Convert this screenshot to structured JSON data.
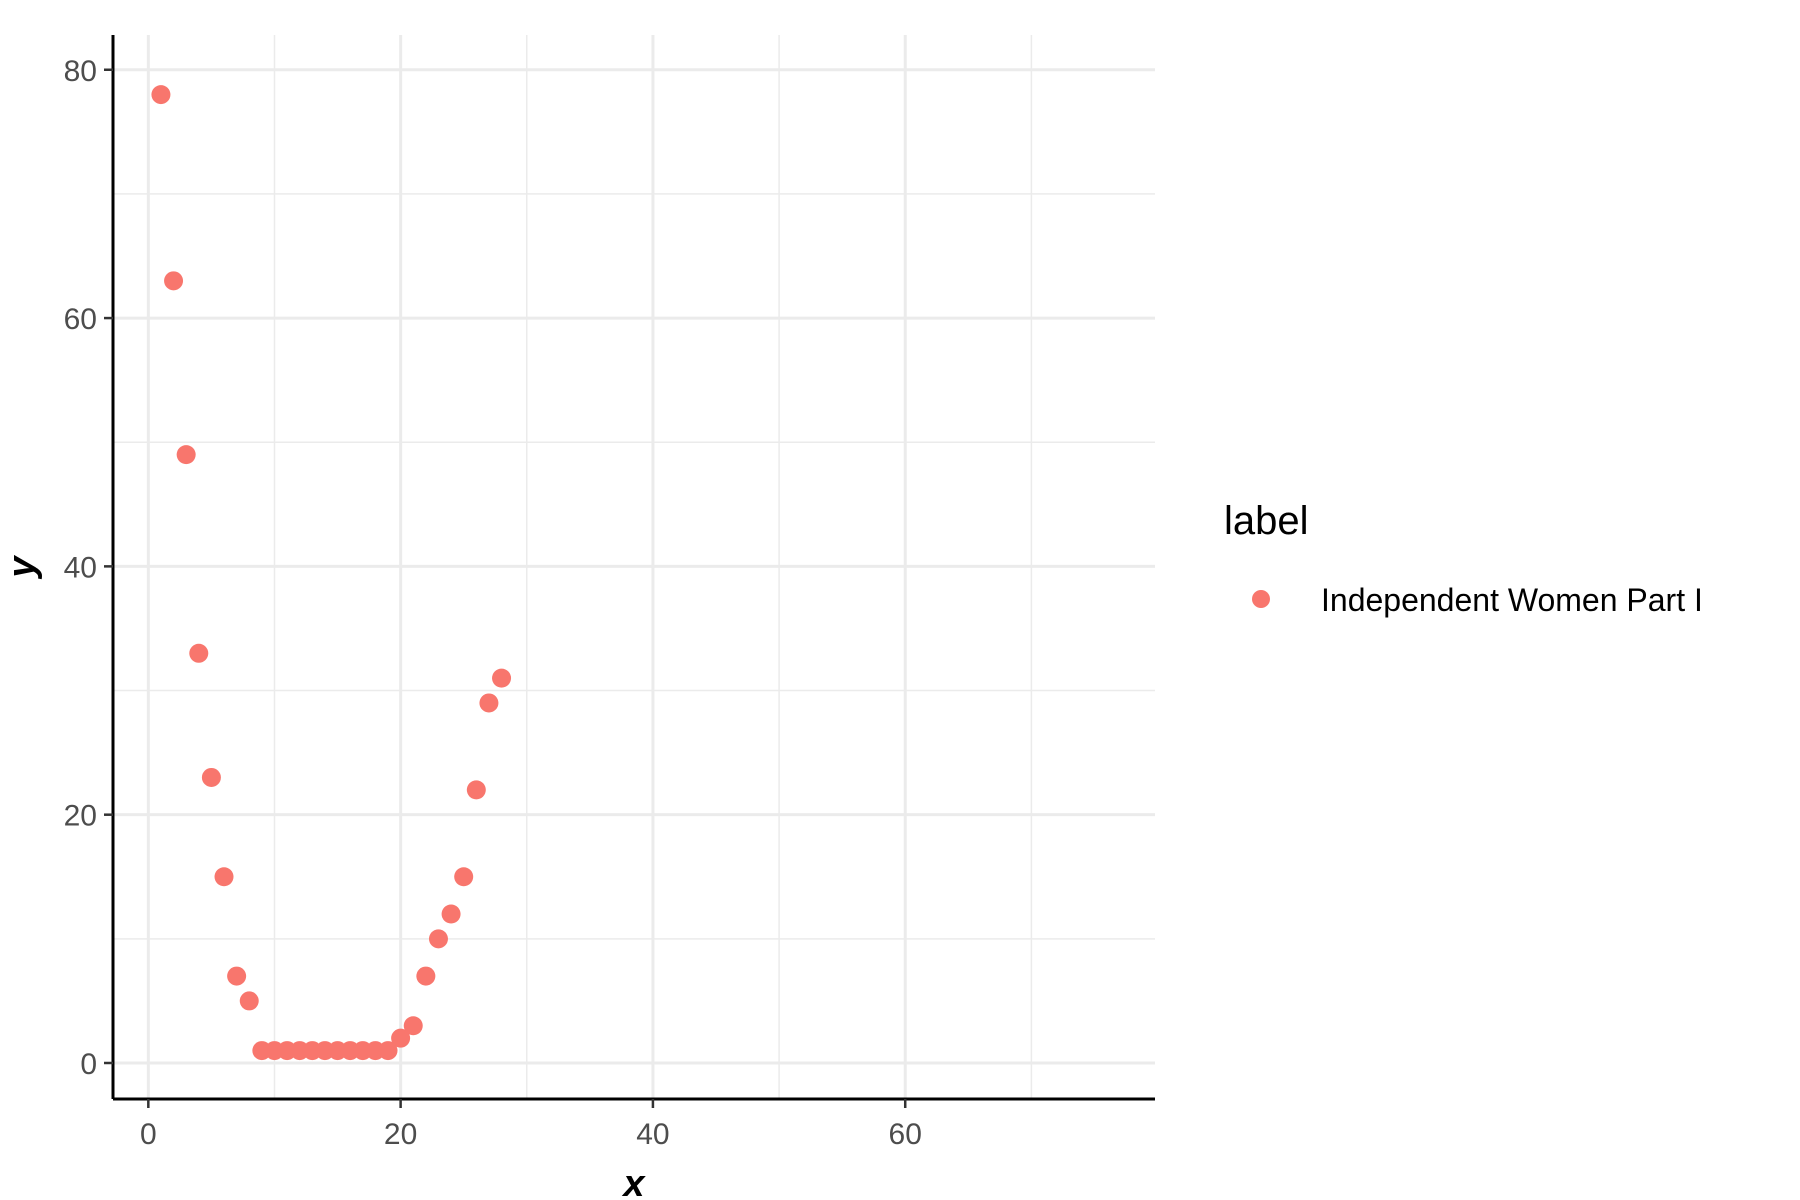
{
  "chart_data": {
    "type": "scatter",
    "title": "",
    "xlabel": "x",
    "ylabel": "y",
    "xlim": [
      -2.8,
      79.8
    ],
    "ylim": [
      -2.9,
      82.8
    ],
    "x_major_ticks": [
      0,
      20,
      40,
      60
    ],
    "x_minor_ticks": [
      10,
      30,
      50,
      70
    ],
    "y_major_ticks": [
      0,
      20,
      40,
      60,
      80
    ],
    "y_minor_ticks": [
      10,
      30,
      50,
      70
    ],
    "x_tick_labels": [
      "0",
      "20",
      "40",
      "60"
    ],
    "y_tick_labels": [
      "0",
      "20",
      "40",
      "60",
      "80"
    ],
    "grid": true,
    "legend_position": "right",
    "legend_title": "label",
    "series": [
      {
        "name": "Independent Women Part I",
        "color": "#F8766D",
        "x": [
          1,
          2,
          3,
          4,
          5,
          6,
          7,
          8,
          9,
          10,
          11,
          12,
          13,
          14,
          15,
          16,
          17,
          18,
          19,
          20,
          21,
          22,
          23,
          24,
          25,
          26,
          27,
          28
        ],
        "y": [
          78,
          63,
          49,
          33,
          23,
          15,
          7,
          5,
          1,
          1,
          1,
          1,
          1,
          1,
          1,
          1,
          1,
          1,
          1,
          2,
          3,
          7,
          10,
          12,
          15,
          22,
          29,
          31
        ]
      }
    ]
  }
}
